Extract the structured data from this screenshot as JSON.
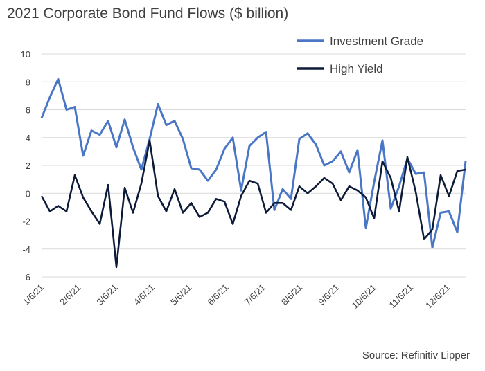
{
  "chart_data": {
    "type": "line",
    "title": "2021 Corporate Bond Fund Flows ($ billion)",
    "source": "Source: Refinitiv Lipper",
    "xlabel": "",
    "ylabel": "",
    "ylim": [
      -6,
      10
    ],
    "yticks": [
      "10",
      "8",
      "6",
      "4",
      "2",
      "0",
      "-2",
      "-4",
      "-6"
    ],
    "xticks": [
      "1/6/21",
      "2/6/21",
      "3/6/21",
      "4/6/21",
      "5/6/21",
      "6/6/21",
      "7/6/21",
      "8/6/21",
      "9/6/21",
      "10/6/21",
      "11/6/21",
      "12/6/21"
    ],
    "grid": "horizontal",
    "legend": "top-right",
    "series": [
      {
        "name": "Investment Grade",
        "color": "#4a76c6",
        "values": [
          5.4,
          6.9,
          8.2,
          6.0,
          6.2,
          2.7,
          4.5,
          4.2,
          5.2,
          3.3,
          5.3,
          3.3,
          1.7,
          3.9,
          6.4,
          4.9,
          5.2,
          3.9,
          1.8,
          1.7,
          0.9,
          1.7,
          3.2,
          4.0,
          0.2,
          3.4,
          4.0,
          4.4,
          -1.2,
          0.3,
          -0.4,
          3.9,
          4.3,
          3.5,
          2.0,
          2.3,
          3.0,
          1.5,
          3.1,
          -2.5,
          0.8,
          3.8,
          -1.1,
          0.5,
          2.5,
          1.4,
          1.5,
          -3.9,
          -1.4,
          -1.3,
          -2.8,
          2.3
        ]
      },
      {
        "name": "High Yield",
        "color": "#0d1b38",
        "values": [
          -0.2,
          -1.3,
          -0.9,
          -1.3,
          1.3,
          -0.3,
          -1.3,
          -2.2,
          0.6,
          -5.3,
          0.4,
          -1.4,
          0.7,
          3.8,
          -0.2,
          -1.3,
          0.3,
          -1.4,
          -0.7,
          -1.7,
          -1.4,
          -0.4,
          -0.6,
          -2.2,
          -0.2,
          0.9,
          0.7,
          -1.4,
          -0.7,
          -0.7,
          -1.2,
          0.5,
          0.0,
          0.5,
          1.1,
          0.7,
          -0.5,
          0.5,
          0.2,
          -0.3,
          -1.8,
          2.3,
          1.1,
          -1.3,
          2.6,
          0.1,
          -3.3,
          -2.6,
          1.3,
          -0.2,
          1.6,
          1.7
        ]
      }
    ]
  }
}
